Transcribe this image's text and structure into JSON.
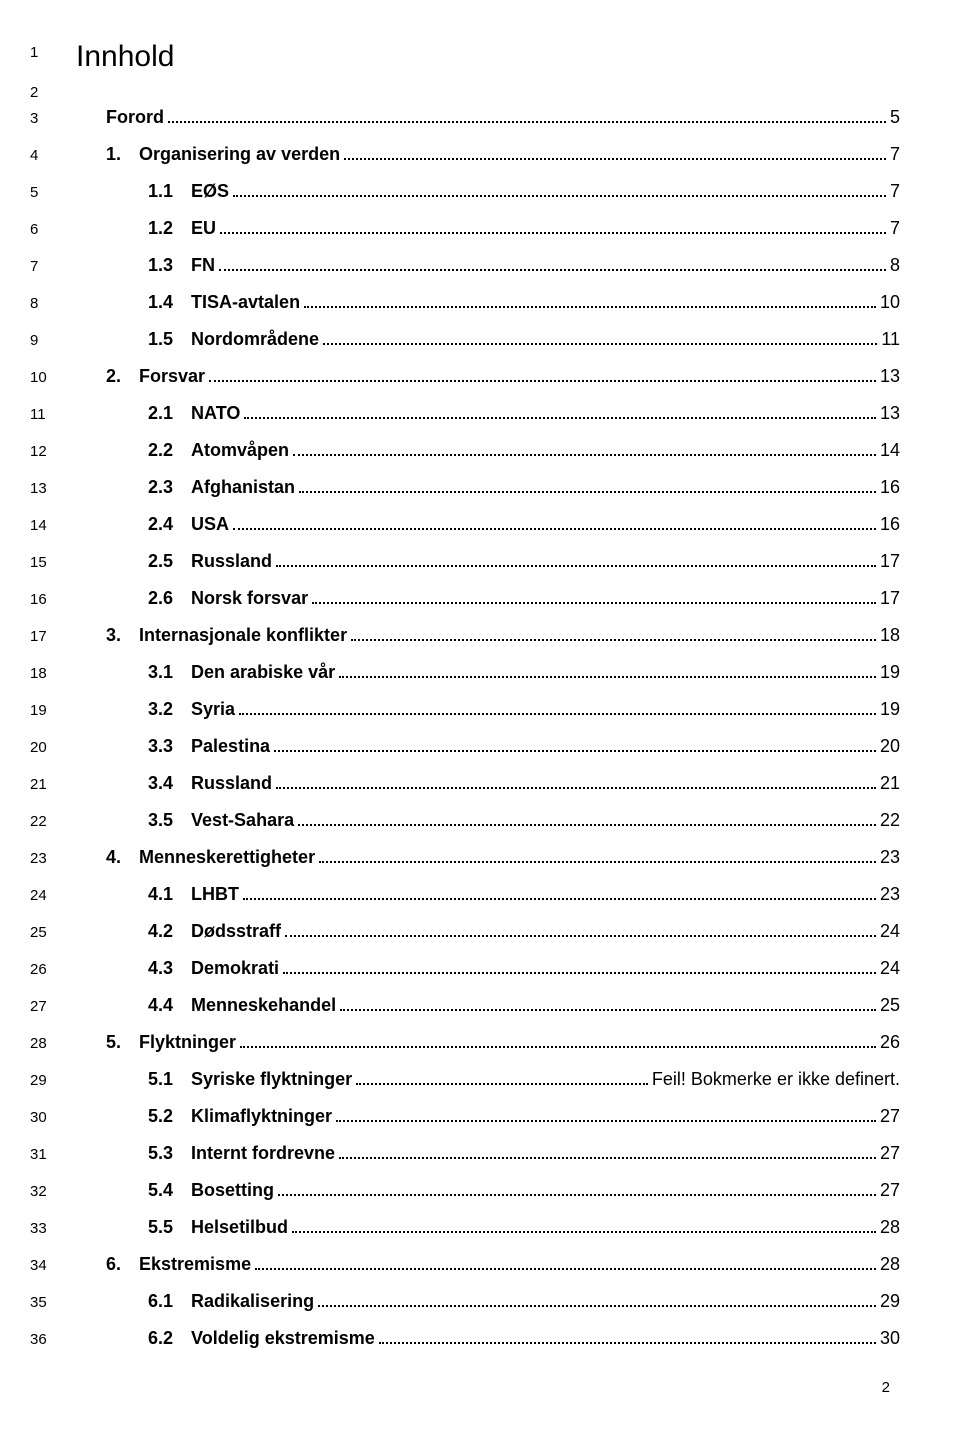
{
  "title": "Innhold",
  "title_line_num": "1",
  "blank_line_num": "2",
  "entries": [
    {
      "line": "3",
      "indent": 0,
      "num": "",
      "label": "Forord",
      "page": "5"
    },
    {
      "line": "4",
      "indent": 0,
      "num": "1.",
      "label": "Organisering av verden",
      "page": "7"
    },
    {
      "line": "5",
      "indent": 1,
      "num": "1.1",
      "label": "EØS",
      "page": "7"
    },
    {
      "line": "6",
      "indent": 1,
      "num": "1.2",
      "label": "EU",
      "page": "7"
    },
    {
      "line": "7",
      "indent": 1,
      "num": "1.3",
      "label": "FN",
      "page": "8"
    },
    {
      "line": "8",
      "indent": 1,
      "num": "1.4",
      "label": "TISA-avtalen",
      "page": "10"
    },
    {
      "line": "9",
      "indent": 1,
      "num": "1.5",
      "label": "Nordområdene",
      "page": "11"
    },
    {
      "line": "10",
      "indent": 0,
      "num": "2.",
      "label": "Forsvar",
      "page": "13"
    },
    {
      "line": "11",
      "indent": 1,
      "num": "2.1",
      "label": "NATO",
      "page": "13"
    },
    {
      "line": "12",
      "indent": 1,
      "num": "2.2",
      "label": "Atomvåpen",
      "page": "14"
    },
    {
      "line": "13",
      "indent": 1,
      "num": "2.3",
      "label": "Afghanistan",
      "page": "16"
    },
    {
      "line": "14",
      "indent": 1,
      "num": "2.4",
      "label": "USA",
      "page": "16"
    },
    {
      "line": "15",
      "indent": 1,
      "num": "2.5",
      "label": "Russland",
      "page": "17"
    },
    {
      "line": "16",
      "indent": 1,
      "num": "2.6",
      "label": "Norsk forsvar",
      "page": "17"
    },
    {
      "line": "17",
      "indent": 0,
      "num": "3.",
      "label": "Internasjonale konflikter",
      "page": "18"
    },
    {
      "line": "18",
      "indent": 1,
      "num": "3.1",
      "label": "Den arabiske vår",
      "page": "19"
    },
    {
      "line": "19",
      "indent": 1,
      "num": "3.2",
      "label": "Syria",
      "page": "19"
    },
    {
      "line": "20",
      "indent": 1,
      "num": "3.3",
      "label": "Palestina",
      "page": "20"
    },
    {
      "line": "21",
      "indent": 1,
      "num": "3.4",
      "label": "Russland",
      "page": "21"
    },
    {
      "line": "22",
      "indent": 1,
      "num": "3.5",
      "label": "Vest-Sahara",
      "page": "22"
    },
    {
      "line": "23",
      "indent": 0,
      "num": "4.",
      "label": "Menneskerettigheter",
      "page": "23"
    },
    {
      "line": "24",
      "indent": 1,
      "num": "4.1",
      "label": "LHBT",
      "page": "23"
    },
    {
      "line": "25",
      "indent": 1,
      "num": "4.2",
      "label": "Dødsstraff",
      "page": "24"
    },
    {
      "line": "26",
      "indent": 1,
      "num": "4.3",
      "label": "Demokrati",
      "page": "24"
    },
    {
      "line": "27",
      "indent": 1,
      "num": "4.4",
      "label": "Menneskehandel",
      "page": "25"
    },
    {
      "line": "28",
      "indent": 0,
      "num": "5.",
      "label": "Flyktninger",
      "page": "26"
    },
    {
      "line": "29",
      "indent": 1,
      "num": "5.1",
      "label": "Syriske flyktninger",
      "page": "Feil! Bokmerke er ikke definert."
    },
    {
      "line": "30",
      "indent": 1,
      "num": "5.2",
      "label": "Klimaflyktninger",
      "page": "27"
    },
    {
      "line": "31",
      "indent": 1,
      "num": "5.3",
      "label": " Internt fordrevne",
      "page": "27"
    },
    {
      "line": "32",
      "indent": 1,
      "num": "5.4",
      "label": "Bosetting",
      "page": "27"
    },
    {
      "line": "33",
      "indent": 1,
      "num": "5.5",
      "label": "Helsetilbud",
      "page": "28"
    },
    {
      "line": "34",
      "indent": 0,
      "num": "6.",
      "label": "Ekstremisme",
      "page": "28"
    },
    {
      "line": "35",
      "indent": 1,
      "num": "6.1",
      "label": "Radikalisering",
      "page": "29"
    },
    {
      "line": "36",
      "indent": 1,
      "num": "6.2",
      "label": "Voldelig ekstremisme",
      "page": "30"
    }
  ],
  "page_number": "2",
  "styles": {
    "background_color": "#ffffff",
    "text_color": "#000000",
    "title_fontsize": 30,
    "entry_fontsize": 18,
    "linenum_fontsize": 15,
    "font_family": "Arial"
  }
}
